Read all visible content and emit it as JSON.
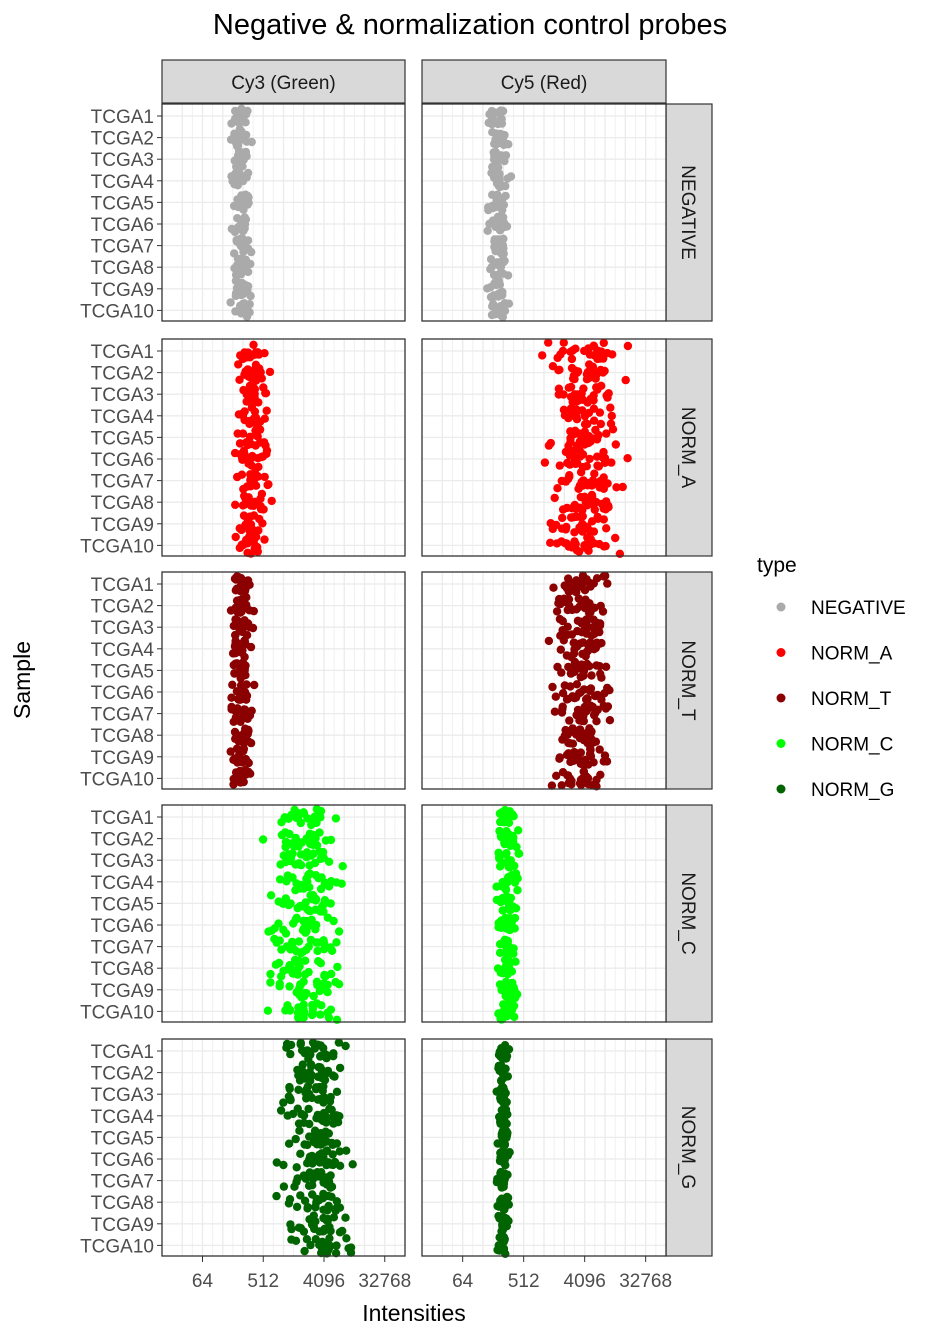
{
  "chart_data": {
    "type": "scatter",
    "title": "Negative & normalization control probes",
    "xlabel": "Intensities",
    "ylabel": "Sample",
    "x_scale": "log2",
    "xlim": [
      16,
      65536
    ],
    "x_ticks": [
      64,
      512,
      4096,
      32768
    ],
    "x_tick_labels": [
      "64",
      "512",
      "4096",
      "32768"
    ],
    "samples": [
      "TCGA1",
      "TCGA2",
      "TCGA3",
      "TCGA4",
      "TCGA5",
      "TCGA6",
      "TCGA7",
      "TCGA8",
      "TCGA9",
      "TCGA10"
    ],
    "columns": [
      "Cy3 (Green)",
      "Cy5 (Red)"
    ],
    "grid": true,
    "legend": {
      "title": "type",
      "position": "right",
      "entries": [
        {
          "name": "NEGATIVE",
          "color": "#aaaaaa"
        },
        {
          "name": "NORM_A",
          "color": "#ff0000"
        },
        {
          "name": "NORM_T",
          "color": "#8b0000"
        },
        {
          "name": "NORM_C",
          "color": "#00ff00"
        },
        {
          "name": "NORM_G",
          "color": "#006400"
        }
      ]
    },
    "panels": [
      {
        "type": "NEGATIVE",
        "channel": "Cy3 (Green)",
        "x_range": [
          150,
          380
        ]
      },
      {
        "type": "NEGATIVE",
        "channel": "Cy5 (Red)",
        "x_range": [
          140,
          340
        ]
      },
      {
        "type": "NORM_A",
        "channel": "Cy3 (Green)",
        "x_range": [
          170,
          750
        ]
      },
      {
        "type": "NORM_A",
        "channel": "Cy5 (Red)",
        "x_range": [
          800,
          20000
        ]
      },
      {
        "type": "NORM_T",
        "channel": "Cy3 (Green)",
        "x_range": [
          150,
          420
        ]
      },
      {
        "type": "NORM_T",
        "channel": "Cy5 (Red)",
        "x_range": [
          900,
          14000
        ]
      },
      {
        "type": "NORM_C",
        "channel": "Cy3 (Green)",
        "x_range": [
          400,
          11000
        ]
      },
      {
        "type": "NORM_C",
        "channel": "Cy5 (Red)",
        "x_range": [
          180,
          480
        ]
      },
      {
        "type": "NORM_G",
        "channel": "Cy3 (Green)",
        "x_range": [
          700,
          14000
        ]
      },
      {
        "type": "NORM_G",
        "channel": "Cy5 (Red)",
        "x_range": [
          190,
          330
        ]
      }
    ]
  }
}
